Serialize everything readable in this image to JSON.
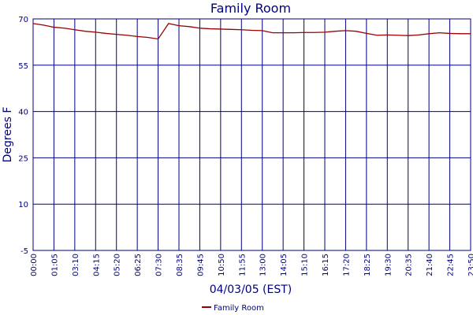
{
  "chart_data": {
    "type": "line",
    "title": "Family Room",
    "x_label": "04/03/05 (EST)",
    "y_label": "Degrees F",
    "categories": [
      "00:00",
      null,
      "01:05",
      null,
      "03:10",
      null,
      "04:15",
      null,
      "05:20",
      null,
      "06:25",
      null,
      "07:30",
      null,
      "08:35",
      null,
      "09:45",
      null,
      "10:50",
      null,
      "11:55",
      null,
      "13:00",
      null,
      "14:05",
      null,
      "15:10",
      null,
      "16:15",
      null,
      "17:20",
      null,
      "18:25",
      null,
      "19:30",
      null,
      "20:35",
      null,
      "21:40",
      null,
      "22:45",
      null,
      "23:50"
    ],
    "series": [
      {
        "name": "Family Room",
        "color": "#990000",
        "values": [
          68.5,
          68,
          67.3,
          67,
          66.5,
          66,
          65.7,
          65.3,
          65,
          64.7,
          64.3,
          64,
          63.5,
          68.5,
          67.8,
          67.5,
          67,
          66.8,
          66.7,
          66.6,
          66.5,
          66.3,
          66.2,
          65.5,
          65.5,
          65.5,
          65.6,
          65.6,
          65.7,
          66,
          66.2,
          66,
          65.3,
          64.7,
          64.8,
          64.7,
          64.6,
          64.8,
          65.2,
          65.5,
          65.3,
          65.2,
          65.2
        ]
      }
    ],
    "ylim": [
      -5,
      70
    ],
    "yticks": [
      -5,
      10,
      25,
      40,
      55,
      70
    ],
    "grid": true,
    "grid_color": "#000080",
    "legend": "bottom"
  }
}
